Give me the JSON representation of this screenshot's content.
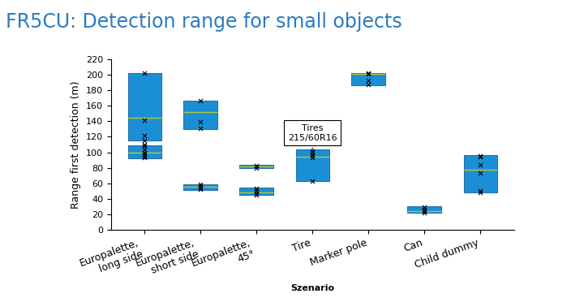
{
  "chart_data": {
    "type": "floating_box",
    "title": "FR5CU: Detection range for small objects",
    "x_label": "Szenario",
    "y_label": "Range first detection (m)",
    "categories": [
      "Europalette, long side",
      "Europalette, short side",
      "Europalette, 45°",
      "Tire",
      "Marker pole",
      "Can",
      "Child dummy"
    ],
    "boxes": [
      [
        {
          "low": 115,
          "high": 203,
          "median": 145,
          "points": [
            203,
            142,
            122,
            115,
            110
          ]
        },
        {
          "low": 92,
          "high": 109,
          "median": 99,
          "points": [
            108,
            104,
            100,
            97,
            95,
            93
          ]
        }
      ],
      [
        {
          "low": 130,
          "high": 167,
          "median": 152,
          "points": [
            167,
            139,
            131
          ]
        },
        {
          "low": 51,
          "high": 58,
          "median": 55,
          "points": [
            58,
            56,
            54,
            52
          ]
        }
      ],
      [
        {
          "low": 79,
          "high": 84,
          "median": 82,
          "points": [
            83,
            80
          ]
        },
        {
          "low": 45,
          "high": 54,
          "median": 48,
          "points": [
            53,
            50,
            47,
            45
          ]
        }
      ],
      [
        {
          "low": 63,
          "high": 104,
          "median": 94,
          "points": [
            102,
            99,
            96,
            93,
            63
          ]
        }
      ],
      [
        {
          "low": 187,
          "high": 203,
          "median": 201,
          "points": [
            203,
            201,
            193,
            188
          ]
        }
      ],
      [
        {
          "low": 22,
          "high": 30,
          "median": 24,
          "points": [
            29,
            26,
            24,
            22
          ]
        }
      ],
      [
        {
          "low": 48,
          "high": 96,
          "median": 77,
          "points": [
            95,
            94,
            84,
            73,
            50,
            48
          ]
        }
      ]
    ],
    "color": "#1a8fd6",
    "annotations": [
      {
        "text": "Tires\n215/60R16",
        "category": "Tire",
        "y": 125
      }
    ],
    "ylim": [
      0,
      220
    ],
    "yticks": [
      0,
      20,
      40,
      60,
      80,
      100,
      120,
      140,
      160,
      180,
      200,
      220
    ],
    "grid": false
  }
}
